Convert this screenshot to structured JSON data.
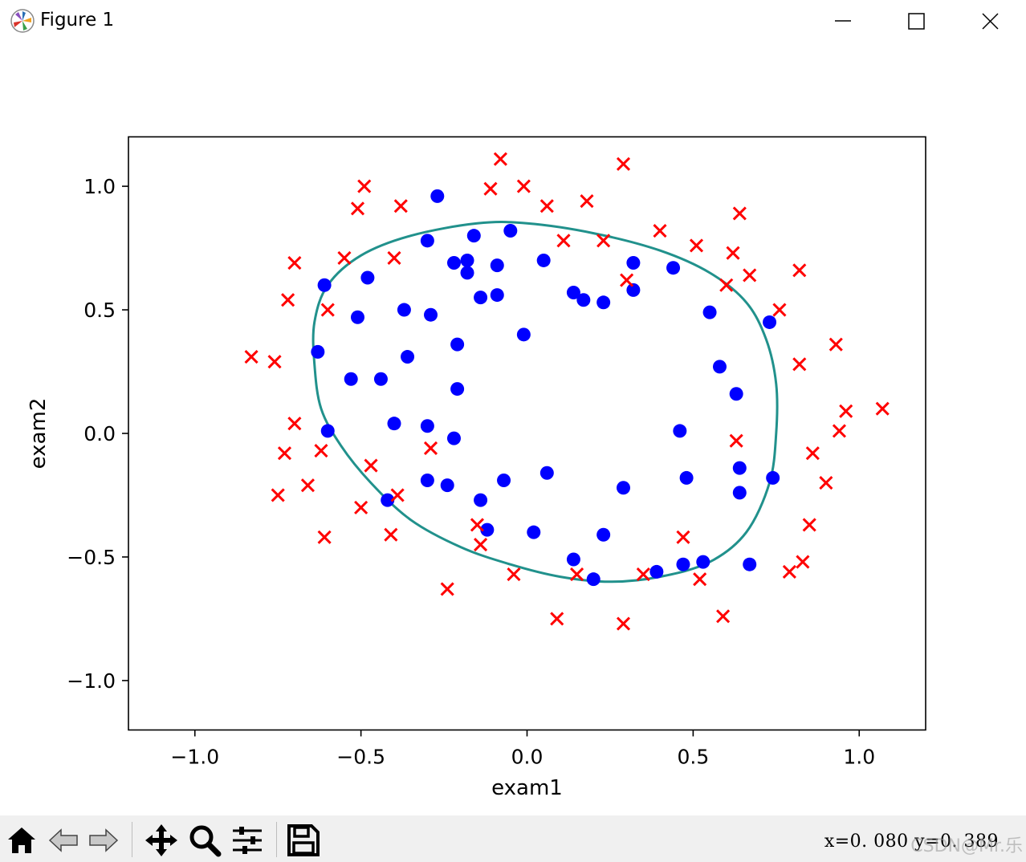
{
  "window": {
    "title": "Figure 1",
    "icons": {
      "app": "matplotlib-logo-icon",
      "minimize": "minimize-icon",
      "maximize": "maximize-icon",
      "close": "close-icon"
    }
  },
  "toolbar": {
    "buttons": [
      {
        "name": "home-button",
        "icon": "home-icon"
      },
      {
        "name": "back-button",
        "icon": "back-arrow-icon"
      },
      {
        "name": "forward-button",
        "icon": "forward-arrow-icon"
      },
      {
        "name": "pan-button",
        "icon": "pan-move-icon"
      },
      {
        "name": "zoom-button",
        "icon": "zoom-magnifier-icon"
      },
      {
        "name": "configure-subplots-button",
        "icon": "sliders-icon"
      },
      {
        "name": "save-button",
        "icon": "save-disk-icon"
      }
    ],
    "coords": "x=0. 080  y=0. 389",
    "watermark": "CSDN@Mr.乐"
  },
  "chart_data": {
    "type": "scatter",
    "title": "",
    "xlabel": "exam1",
    "ylabel": "exam2",
    "xlim": [
      -1.2,
      1.2
    ],
    "ylim": [
      -1.2,
      1.2
    ],
    "xticks": [
      -1.0,
      -0.5,
      0.0,
      0.5,
      1.0
    ],
    "xtick_labels": [
      "−1.0",
      "−0.5",
      "0.0",
      "0.5",
      "1.0"
    ],
    "yticks": [
      1.0,
      0.5,
      0.0,
      -0.5,
      -1.0
    ],
    "ytick_labels": [
      "1.0",
      "0.5",
      "0.0",
      "−0.5",
      "−1.0"
    ],
    "grid": false,
    "colors": {
      "positive": "#0000ff",
      "negative": "#ff0000",
      "boundary": "#21918c"
    },
    "series": [
      {
        "marker": "o",
        "color": "#0000ff",
        "points": [
          [
            -0.27,
            0.96
          ],
          [
            -0.16,
            0.8
          ],
          [
            -0.05,
            0.82
          ],
          [
            -0.3,
            0.78
          ],
          [
            -0.22,
            0.69
          ],
          [
            -0.18,
            0.7
          ],
          [
            -0.09,
            0.68
          ],
          [
            -0.18,
            0.65
          ],
          [
            0.05,
            0.7
          ],
          [
            -0.61,
            0.6
          ],
          [
            -0.48,
            0.63
          ],
          [
            -0.14,
            0.55
          ],
          [
            -0.09,
            0.56
          ],
          [
            0.14,
            0.57
          ],
          [
            0.17,
            0.54
          ],
          [
            0.23,
            0.53
          ],
          [
            0.32,
            0.69
          ],
          [
            0.44,
            0.67
          ],
          [
            0.32,
            0.58
          ],
          [
            -0.51,
            0.47
          ],
          [
            -0.37,
            0.5
          ],
          [
            -0.29,
            0.48
          ],
          [
            -0.01,
            0.4
          ],
          [
            0.55,
            0.49
          ],
          [
            0.73,
            0.45
          ],
          [
            -0.63,
            0.33
          ],
          [
            -0.21,
            0.36
          ],
          [
            -0.36,
            0.31
          ],
          [
            -0.53,
            0.22
          ],
          [
            -0.44,
            0.22
          ],
          [
            -0.21,
            0.18
          ],
          [
            0.58,
            0.27
          ],
          [
            0.63,
            0.16
          ],
          [
            -0.6,
            0.01
          ],
          [
            -0.4,
            0.04
          ],
          [
            -0.3,
            0.03
          ],
          [
            -0.22,
            -0.02
          ],
          [
            0.46,
            0.01
          ],
          [
            0.64,
            -0.14
          ],
          [
            -0.3,
            -0.19
          ],
          [
            -0.24,
            -0.21
          ],
          [
            -0.07,
            -0.19
          ],
          [
            0.06,
            -0.16
          ],
          [
            0.29,
            -0.22
          ],
          [
            0.48,
            -0.18
          ],
          [
            0.74,
            -0.18
          ],
          [
            0.64,
            -0.24
          ],
          [
            -0.42,
            -0.27
          ],
          [
            -0.14,
            -0.27
          ],
          [
            -0.12,
            -0.39
          ],
          [
            0.02,
            -0.4
          ],
          [
            0.23,
            -0.41
          ],
          [
            0.14,
            -0.51
          ],
          [
            0.2,
            -0.59
          ],
          [
            0.39,
            -0.56
          ],
          [
            0.47,
            -0.53
          ],
          [
            0.53,
            -0.52
          ],
          [
            0.67,
            -0.53
          ]
        ]
      },
      {
        "marker": "x",
        "color": "#ff0000",
        "points": [
          [
            -0.08,
            1.11
          ],
          [
            0.29,
            1.09
          ],
          [
            -0.49,
            1.0
          ],
          [
            -0.11,
            0.99
          ],
          [
            -0.01,
            1.0
          ],
          [
            -0.51,
            0.91
          ],
          [
            -0.38,
            0.92
          ],
          [
            0.06,
            0.92
          ],
          [
            0.18,
            0.94
          ],
          [
            0.64,
            0.89
          ],
          [
            0.4,
            0.82
          ],
          [
            0.11,
            0.78
          ],
          [
            0.23,
            0.78
          ],
          [
            0.51,
            0.76
          ],
          [
            -0.7,
            0.69
          ],
          [
            -0.55,
            0.71
          ],
          [
            -0.4,
            0.71
          ],
          [
            0.62,
            0.73
          ],
          [
            0.82,
            0.66
          ],
          [
            0.3,
            0.62
          ],
          [
            0.6,
            0.6
          ],
          [
            0.67,
            0.64
          ],
          [
            -0.72,
            0.54
          ],
          [
            -0.6,
            0.5
          ],
          [
            0.76,
            0.5
          ],
          [
            -0.83,
            0.31
          ],
          [
            -0.76,
            0.29
          ],
          [
            0.93,
            0.36
          ],
          [
            0.82,
            0.28
          ],
          [
            -0.7,
            0.04
          ],
          [
            0.96,
            0.09
          ],
          [
            1.07,
            0.1
          ],
          [
            0.94,
            0.01
          ],
          [
            -0.29,
            -0.06
          ],
          [
            -0.62,
            -0.07
          ],
          [
            -0.73,
            -0.08
          ],
          [
            0.63,
            -0.03
          ],
          [
            0.86,
            -0.08
          ],
          [
            -0.47,
            -0.13
          ],
          [
            -0.66,
            -0.21
          ],
          [
            -0.75,
            -0.25
          ],
          [
            0.9,
            -0.2
          ],
          [
            -0.39,
            -0.25
          ],
          [
            -0.5,
            -0.3
          ],
          [
            -0.15,
            -0.37
          ],
          [
            -0.41,
            -0.41
          ],
          [
            -0.61,
            -0.42
          ],
          [
            0.47,
            -0.42
          ],
          [
            0.85,
            -0.37
          ],
          [
            -0.14,
            -0.45
          ],
          [
            -0.04,
            -0.57
          ],
          [
            0.15,
            -0.57
          ],
          [
            0.35,
            -0.57
          ],
          [
            0.52,
            -0.59
          ],
          [
            0.79,
            -0.56
          ],
          [
            0.83,
            -0.52
          ],
          [
            -0.24,
            -0.63
          ],
          [
            0.09,
            -0.75
          ],
          [
            0.29,
            -0.77
          ],
          [
            0.59,
            -0.74
          ]
        ]
      }
    ],
    "decision_boundary": {
      "type": "contour",
      "level": 0,
      "color": "#21918c",
      "path": [
        [
          -0.15,
          0.85
        ],
        [
          0.0,
          0.85
        ],
        [
          0.2,
          0.81
        ],
        [
          0.4,
          0.74
        ],
        [
          0.55,
          0.65
        ],
        [
          0.66,
          0.53
        ],
        [
          0.72,
          0.38
        ],
        [
          0.75,
          0.2
        ],
        [
          0.75,
          0.0
        ],
        [
          0.73,
          -0.2
        ],
        [
          0.66,
          -0.4
        ],
        [
          0.55,
          -0.52
        ],
        [
          0.4,
          -0.58
        ],
        [
          0.25,
          -0.6
        ],
        [
          0.1,
          -0.58
        ],
        [
          -0.05,
          -0.53
        ],
        [
          -0.2,
          -0.46
        ],
        [
          -0.35,
          -0.35
        ],
        [
          -0.47,
          -0.2
        ],
        [
          -0.56,
          -0.05
        ],
        [
          -0.62,
          0.1
        ],
        [
          -0.64,
          0.28
        ],
        [
          -0.64,
          0.45
        ],
        [
          -0.6,
          0.6
        ],
        [
          -0.5,
          0.72
        ],
        [
          -0.35,
          0.8
        ],
        [
          -0.15,
          0.85
        ]
      ]
    }
  }
}
